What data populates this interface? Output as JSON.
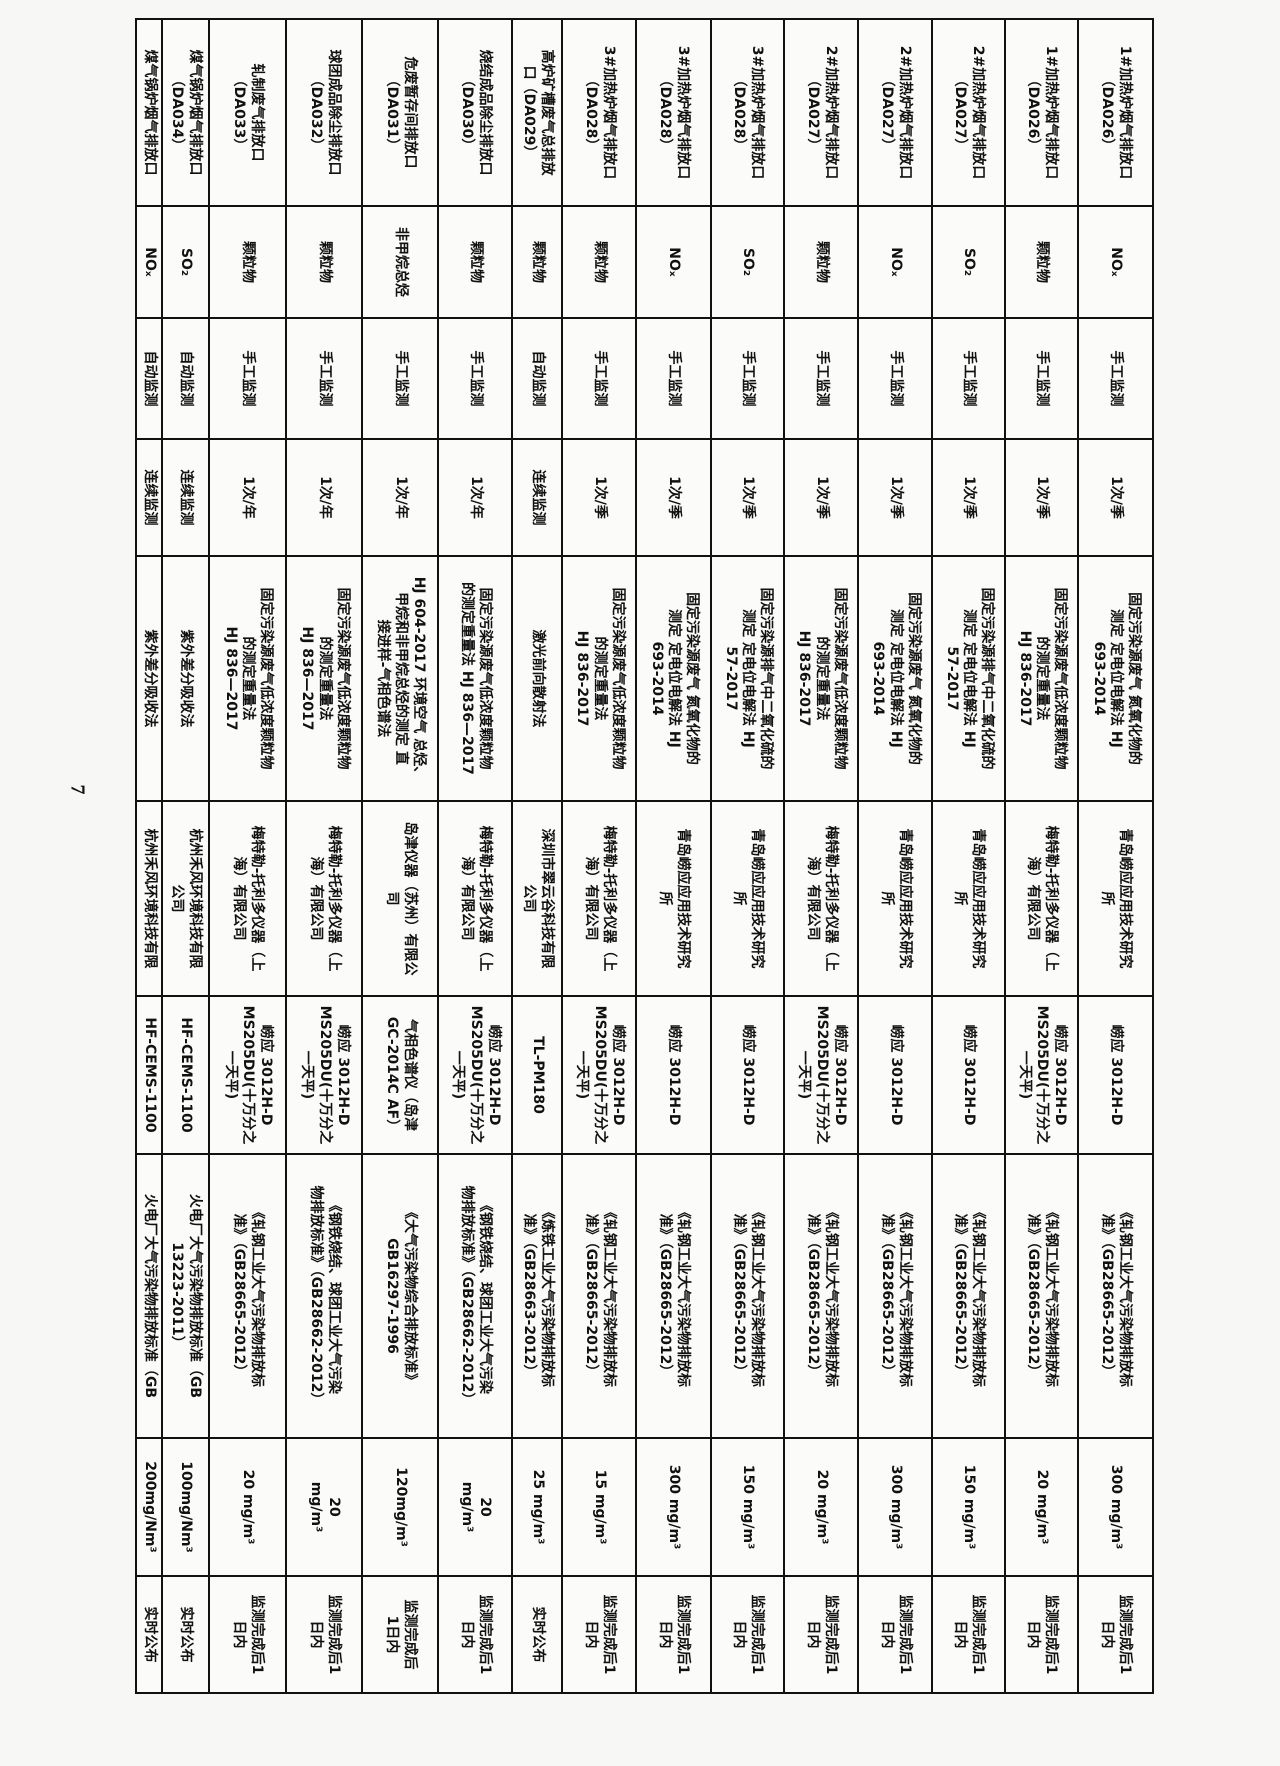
{
  "page_number": "7",
  "rows": [
    [
      "1#加热炉烟气排放口\n（DA026）",
      "NOₓ",
      "手工监测",
      "1次/季",
      "固定污染源废气 氮氧化物的\n测定 定电位电解法 HJ\n693-2014",
      "青岛崂应应用技术研究\n所",
      "崂应 3012H-D",
      "《轧钢工业大气污染物排放标\n准》（GB28665-2012）",
      "300 mg/m³",
      "监测完成后1\n日内"
    ],
    [
      "1#加热炉烟气排放口\n（DA026）",
      "颗粒物",
      "手工监测",
      "1次/季",
      "固定污染源废气低浓度颗粒物\n的测定重量法\nHJ 836-2017",
      "梅特勒-托利多仪器（上\n海）有限公司",
      "崂应 3012H-D\nMS205DU(十万分之\n一天平)",
      "《轧钢工业大气污染物排放标\n准》（GB28665-2012）",
      "20 mg/m³",
      "监测完成后1\n日内"
    ],
    [
      "2#加热炉烟气排放口\n（DA027）",
      "SO₂",
      "手工监测",
      "1次/季",
      "固定污染源排气中二氧化硫的\n测定 定电位电解法 HJ\n57-2017",
      "青岛崂应应用技术研究\n所",
      "崂应 3012H-D",
      "《轧钢工业大气污染物排放标\n准》（GB28665-2012）",
      "150 mg/m³",
      "监测完成后1\n日内"
    ],
    [
      "2#加热炉烟气排放口\n（DA027）",
      "NOₓ",
      "手工监测",
      "1次/季",
      "固定污染源废气 氮氧化物的\n测定 定电位电解法 HJ\n693-2014",
      "青岛崂应应用技术研究\n所",
      "崂应 3012H-D",
      "《轧钢工业大气污染物排放标\n准》（GB28665-2012）",
      "300 mg/m³",
      "监测完成后1\n日内"
    ],
    [
      "2#加热炉烟气排放口\n（DA027）",
      "颗粒物",
      "手工监测",
      "1次/季",
      "固定污染源废气低浓度颗粒物\n的测定重量法\nHJ 836-2017",
      "梅特勒-托利多仪器（上\n海）有限公司",
      "崂应 3012H-D\nMS205DU(十万分之\n一天平)",
      "《轧钢工业大气污染物排放标\n准》（GB28665-2012）",
      "20 mg/m³",
      "监测完成后1\n日内"
    ],
    [
      "3#加热炉烟气排放口\n（DA028）",
      "SO₂",
      "手工监测",
      "1次/季",
      "固定污染源排气中二氧化硫的\n测定 定电位电解法 HJ\n57-2017",
      "青岛崂应应用技术研究\n所",
      "崂应 3012H-D",
      "《轧钢工业大气污染物排放标\n准》（GB28665-2012）",
      "150 mg/m³",
      "监测完成后1\n日内"
    ],
    [
      "3#加热炉烟气排放口\n（DA028）",
      "NOₓ",
      "手工监测",
      "1次/季",
      "固定污染源废气 氮氧化物的\n测定 定电位电解法 HJ\n693-2014",
      "青岛崂应应用技术研究\n所",
      "崂应 3012H-D",
      "《轧钢工业大气污染物排放标\n准》（GB28665-2012）",
      "300 mg/m³",
      "监测完成后1\n日内"
    ],
    [
      "3#加热炉烟气排放口\n（DA028）",
      "颗粒物",
      "手工监测",
      "1次/季",
      "固定污染源废气低浓度颗粒物\n的测定重量法\nHJ 836-2017",
      "梅特勒-托利多仪器（上\n海）有限公司",
      "崂应 3012H-D\nMS205DU(十万分之\n一天平)",
      "《轧钢工业大气污染物排放标\n准》（GB28665-2012）",
      "15 mg/m³",
      "监测完成后1\n日内"
    ],
    [
      "高炉矿槽废气总排放\n口（DA029）",
      "颗粒物",
      "自动监测",
      "连续监测",
      "激光前向散射法",
      "深圳市翠云谷科技有限\n公司",
      "TL-PM180",
      "《炼铁工业大气污染物排放标\n准》（GB28663-2012）",
      "25 mg/m³",
      "实时公布"
    ],
    [
      "烧结成品除尘排放口\n（DA030）",
      "颗粒物",
      "手工监测",
      "1次/年",
      "固定污染源废气低浓度颗粒物\n的测定重量法 HJ 836—2017",
      "梅特勒-托利多仪器（上\n海）有限公司",
      "崂应 3012H-D\nMS205DU(十万分之\n一天平)",
      "《钢铁烧结、球团工业大气污染\n物排放标准》（GB28662-2012）",
      "20\nmg/m³",
      "监测完成后1\n日内"
    ],
    [
      "危废暂存间排放口\n（DA031）",
      "非甲烷总烃",
      "手工监测",
      "1次/年",
      "HJ 604-2017 环境空气 总烃、\n甲烷和非甲烷总烃的测定 直\n接进样-气相色谱法",
      "岛津仪器（苏州）有限公\n司",
      "气相色谱仪（岛津\nGC-2014C AF）",
      "《大气污染物综合排放标准》\nGB16297-1996",
      "120mg/m³",
      "监测完成后\n1日内"
    ],
    [
      "球团成品除尘排放口\n（DA032）",
      "颗粒物",
      "手工监测",
      "1次/年",
      "固定污染源废气低浓度颗粒物\n的测定重量法\nHJ 836—2017",
      "梅特勒-托利多仪器（上\n海）有限公司",
      "崂应 3012H-D\nMS205DU(十万分之\n一天平)",
      "《钢铁烧结、球团工业大气污染\n物排放标准》（GB28662-2012）",
      "20\nmg/m³",
      "监测完成后1\n日内"
    ],
    [
      "轧制废气排放口\n（DA033）",
      "颗粒物",
      "手工监测",
      "1次/年",
      "固定污染源废气低浓度颗粒物\n的测定重量法\nHJ 836—2017",
      "梅特勒-托利多仪器（上\n海）有限公司",
      "崂应 3012H-D\nMS205DU(十万分之\n一天平)",
      "《轧钢工业大气污染物排放标\n准》（GB28665-2012）",
      "20 mg/m³",
      "监测完成后1\n日内"
    ],
    [
      "煤气锅炉烟气排放口\n（DA034）",
      "SO₂",
      "自动监测",
      "连续监测",
      "紫外差分吸收法",
      "杭州禾风环境科技有限\n公司",
      "HF-CEMS-1100",
      "火电厂大气污染物排放标准（GB\n13223-2011）",
      "100mg/Nm³",
      "实时公布"
    ],
    [
      "煤气锅炉烟气排放口",
      "NOₓ",
      "自动监测",
      "连续监测",
      "紫外差分吸收法",
      "杭州禾风环境科技有限",
      "HF-CEMS-1100",
      "火电厂大气污染物排放标准（GB",
      "200mg/Nm³",
      "实时公布"
    ]
  ]
}
